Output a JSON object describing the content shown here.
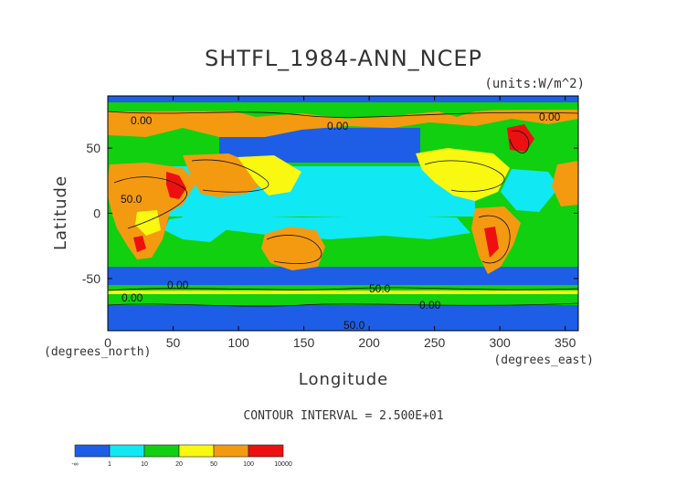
{
  "chart_data": {
    "type": "heatmap",
    "title": "SHTFL_1984-ANN_NCEP",
    "units_label": "(units:W/m^2)",
    "xlabel": "Longitude",
    "ylabel": "Latitude",
    "x_unit_label": "(degrees_east)",
    "y_unit_label": "(degrees_north)",
    "xlim": [
      0,
      360
    ],
    "ylim": [
      -90,
      90
    ],
    "x_ticks": [
      0,
      50,
      100,
      150,
      200,
      250,
      300,
      350
    ],
    "y_ticks": [
      50,
      0,
      -50
    ],
    "contour_interval_text": "CONTOUR INTERVAL = 2.500E+01",
    "contour_labels": [
      "0.00",
      "0.00",
      "50.0",
      "50.0",
      "0.00",
      "0.00",
      "0.00",
      "50.0",
      "0.00"
    ],
    "colorbar": {
      "labels": [
        "-∞",
        "1",
        "10",
        "20",
        "50",
        "100",
        "10000"
      ],
      "colors": [
        "#1e5ee6",
        "#10e8f4",
        "#10d010",
        "#f8f810",
        "#f49a10",
        "#ee1010"
      ]
    },
    "regions": {
      "ocean_south_polar": "#1e5ee6",
      "ocean_tropical": "#10e8f4",
      "ocean_mid": "#10d010",
      "land_warm": "#f49a10",
      "land_mild": "#f8f810",
      "land_hot": "#ee1010"
    }
  }
}
